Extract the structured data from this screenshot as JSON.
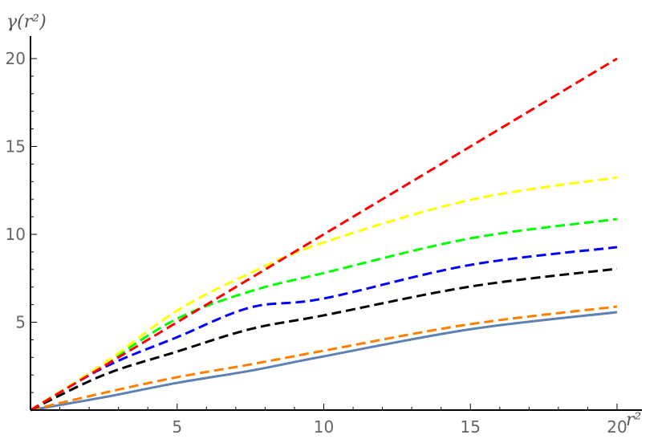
{
  "chart_data": {
    "type": "line",
    "title": "",
    "xlabel": "r²",
    "ylabel": "γ(r²)",
    "xlim": [
      0,
      20
    ],
    "ylim": [
      0,
      21
    ],
    "grid": false,
    "x_ticks": [
      "5",
      "10",
      "15",
      "20"
    ],
    "y_ticks": [
      "5",
      "10",
      "15",
      "20"
    ],
    "x": [
      0,
      2.5,
      5,
      7.5,
      10,
      15,
      20
    ],
    "series": [
      {
        "color": "#5E81B5",
        "style": "solid",
        "values": [
          0,
          0.73,
          1.55,
          2.24,
          3.06,
          4.6,
          5.57
        ]
      },
      {
        "color": "#FF8000",
        "style": "dashed",
        "values": [
          0,
          0.98,
          1.87,
          2.6,
          3.38,
          4.89,
          5.89
        ]
      },
      {
        "color": "#000000",
        "style": "dashed",
        "values": [
          0,
          2.0,
          3.33,
          4.61,
          5.39,
          7.03,
          8.04
        ]
      },
      {
        "color": "#0000FF",
        "style": "dashed",
        "values": [
          0,
          2.42,
          4.15,
          5.84,
          6.35,
          8.26,
          9.27
        ]
      },
      {
        "color": "#00FF00",
        "style": "dashed",
        "values": [
          0,
          2.6,
          5.2,
          6.76,
          7.8,
          9.77,
          10.87
        ]
      },
      {
        "color": "#FFFF00",
        "style": "dashed",
        "values": [
          0,
          2.65,
          5.66,
          7.8,
          9.54,
          11.96,
          13.24
        ]
      },
      {
        "color": "#FF0000",
        "style": "dashed",
        "values": [
          0,
          2.5,
          5,
          7.5,
          10,
          15,
          20
        ]
      }
    ]
  }
}
